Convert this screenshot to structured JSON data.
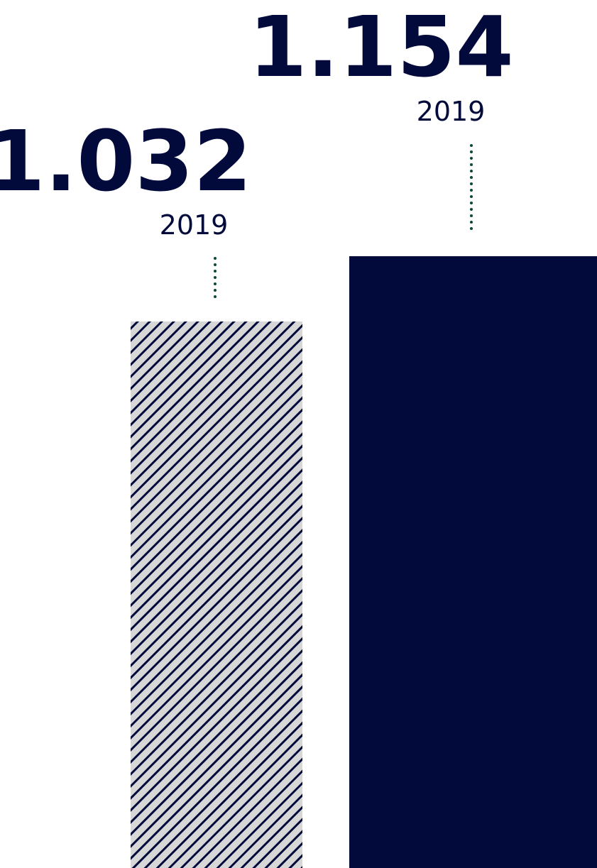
{
  "chart_data": {
    "type": "bar",
    "categories": [
      "2019",
      "2019"
    ],
    "values": [
      1.032,
      1.154
    ],
    "value_labels": [
      "1.032",
      "1.154"
    ],
    "category_labels": [
      "2019",
      "2019"
    ],
    "title": "",
    "xlabel": "",
    "ylabel": "",
    "grid": false,
    "bar_styles": [
      "hatched",
      "solid"
    ],
    "colors": {
      "navy": "#020a3c",
      "hatch_light": "#d7d7d7",
      "leader": "#0b4a32"
    }
  }
}
